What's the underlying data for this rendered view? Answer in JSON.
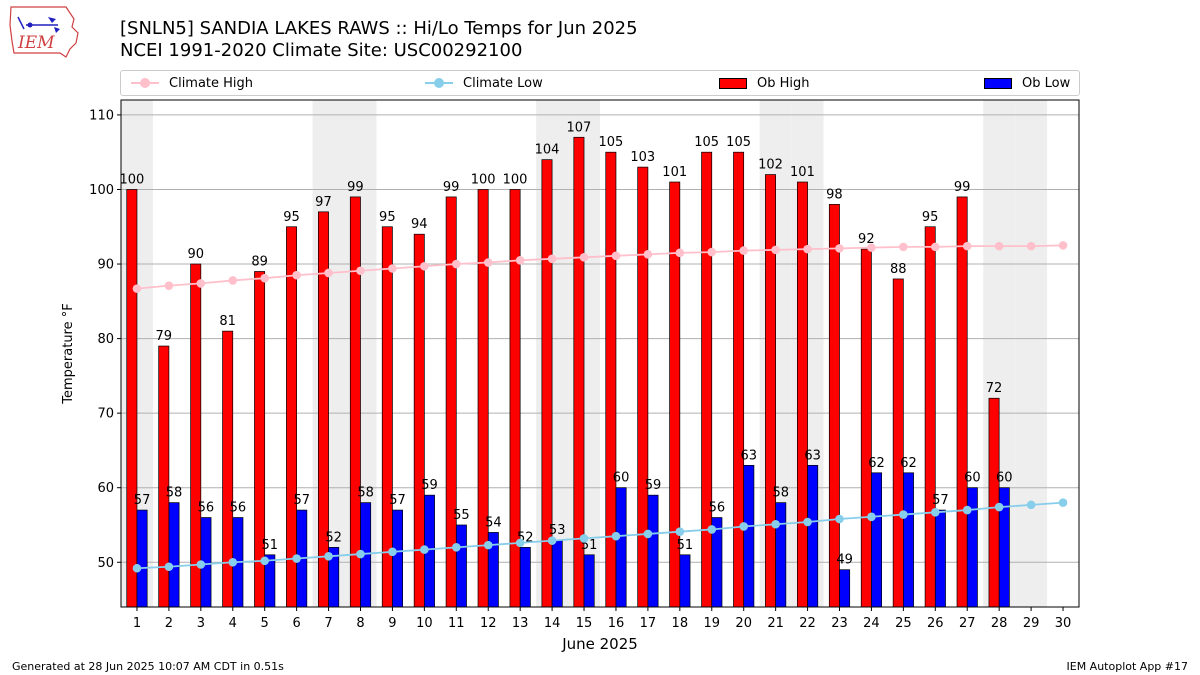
{
  "header": {
    "title_line1": "[SNLN5] SANDIA LAKES RAWS :: Hi/Lo Temps for Jun 2025",
    "title_line2": "NCEI 1991-2020 Climate Site: USC00292100",
    "logo_text": "IEM"
  },
  "legend": [
    {
      "label": "Climate High",
      "color": "#ffc0cb",
      "kind": "line"
    },
    {
      "label": "Climate Low",
      "color": "#87ceeb",
      "kind": "line"
    },
    {
      "label": "Ob High",
      "color": "#ff0000",
      "kind": "bar"
    },
    {
      "label": "Ob Low",
      "color": "#0000ff",
      "kind": "bar"
    }
  ],
  "footer": {
    "left": "Generated at 28 Jun 2025 10:07 AM CDT in 0.51s",
    "right": "IEM Autoplot App #17"
  },
  "chart_data": {
    "type": "bar",
    "xlabel": "June 2025",
    "ylabel": "Temperature °F",
    "ylim": [
      44,
      112
    ],
    "yticks": [
      50,
      60,
      70,
      80,
      90,
      100,
      110
    ],
    "grid": "horizontal",
    "weekend_shading_days": [
      1,
      7,
      8,
      14,
      15,
      21,
      22,
      28,
      29
    ],
    "shading_color": "#eeeeee",
    "days": [
      1,
      2,
      3,
      4,
      5,
      6,
      7,
      8,
      9,
      10,
      11,
      12,
      13,
      14,
      15,
      16,
      17,
      18,
      19,
      20,
      21,
      22,
      23,
      24,
      25,
      26,
      27,
      28,
      29,
      30
    ],
    "series": [
      {
        "name": "Ob High",
        "color": "#ff0000",
        "kind": "bar",
        "values": [
          100,
          79,
          90,
          81,
          89,
          95,
          97,
          99,
          95,
          94,
          99,
          100,
          100,
          104,
          107,
          105,
          103,
          101,
          105,
          105,
          102,
          101,
          98,
          92,
          88,
          95,
          99,
          72,
          null,
          null
        ]
      },
      {
        "name": "Ob Low",
        "color": "#0000ff",
        "kind": "bar",
        "values": [
          57,
          58,
          56,
          56,
          51,
          57,
          52,
          58,
          57,
          59,
          55,
          54,
          52,
          53,
          51,
          60,
          59,
          51,
          56,
          63,
          58,
          63,
          49,
          62,
          62,
          57,
          60,
          60,
          null,
          null
        ]
      },
      {
        "name": "Climate High",
        "color": "#ffc0cb",
        "kind": "line",
        "values": [
          86.7,
          87.1,
          87.4,
          87.8,
          88.1,
          88.5,
          88.8,
          89.1,
          89.4,
          89.7,
          90.0,
          90.2,
          90.5,
          90.7,
          90.9,
          91.1,
          91.3,
          91.5,
          91.6,
          91.8,
          91.9,
          92.0,
          92.1,
          92.2,
          92.3,
          92.3,
          92.4,
          92.4,
          92.4,
          92.5
        ]
      },
      {
        "name": "Climate Low",
        "color": "#87ceeb",
        "kind": "line",
        "values": [
          49.2,
          49.4,
          49.7,
          50.0,
          50.2,
          50.5,
          50.8,
          51.1,
          51.4,
          51.7,
          52.0,
          52.3,
          52.6,
          52.9,
          53.2,
          53.5,
          53.8,
          54.1,
          54.4,
          54.8,
          55.1,
          55.4,
          55.8,
          56.1,
          56.4,
          56.7,
          57.0,
          57.4,
          57.7,
          58.0
        ]
      }
    ]
  }
}
